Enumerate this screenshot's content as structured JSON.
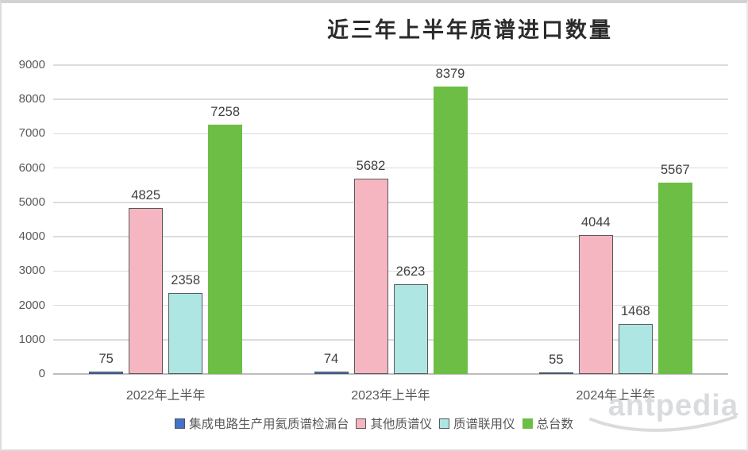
{
  "watermark": {
    "text": "antpedia"
  },
  "chart_data": {
    "type": "bar",
    "title": "近三年上半年质谱进口数量",
    "categories": [
      "2022年上半年",
      "2023年上半年",
      "2024年上半年"
    ],
    "series": [
      {
        "name": "集成电路生产用氦质谱检漏台",
        "values": [
          75,
          74,
          55
        ],
        "color": "#4472c4",
        "border_color": "#4a5568"
      },
      {
        "name": "其他质谱仪",
        "values": [
          4825,
          5682,
          4044
        ],
        "color": "#f5b6c2",
        "border_color": "#595959"
      },
      {
        "name": "质谱联用仪",
        "values": [
          2358,
          2623,
          1468
        ],
        "color": "#aee6e4",
        "border_color": "#595959"
      },
      {
        "name": "总台数",
        "values": [
          7258,
          8379,
          5567
        ],
        "color": "#6cbe45",
        "border_color": "none"
      }
    ],
    "ylim": [
      0,
      9000
    ],
    "yticks": [
      0,
      1000,
      2000,
      3000,
      4000,
      5000,
      6000,
      7000,
      8000,
      9000
    ],
    "xlabel": "",
    "ylabel": "",
    "grid": true,
    "data_labels": true,
    "legend_position": "bottom"
  }
}
